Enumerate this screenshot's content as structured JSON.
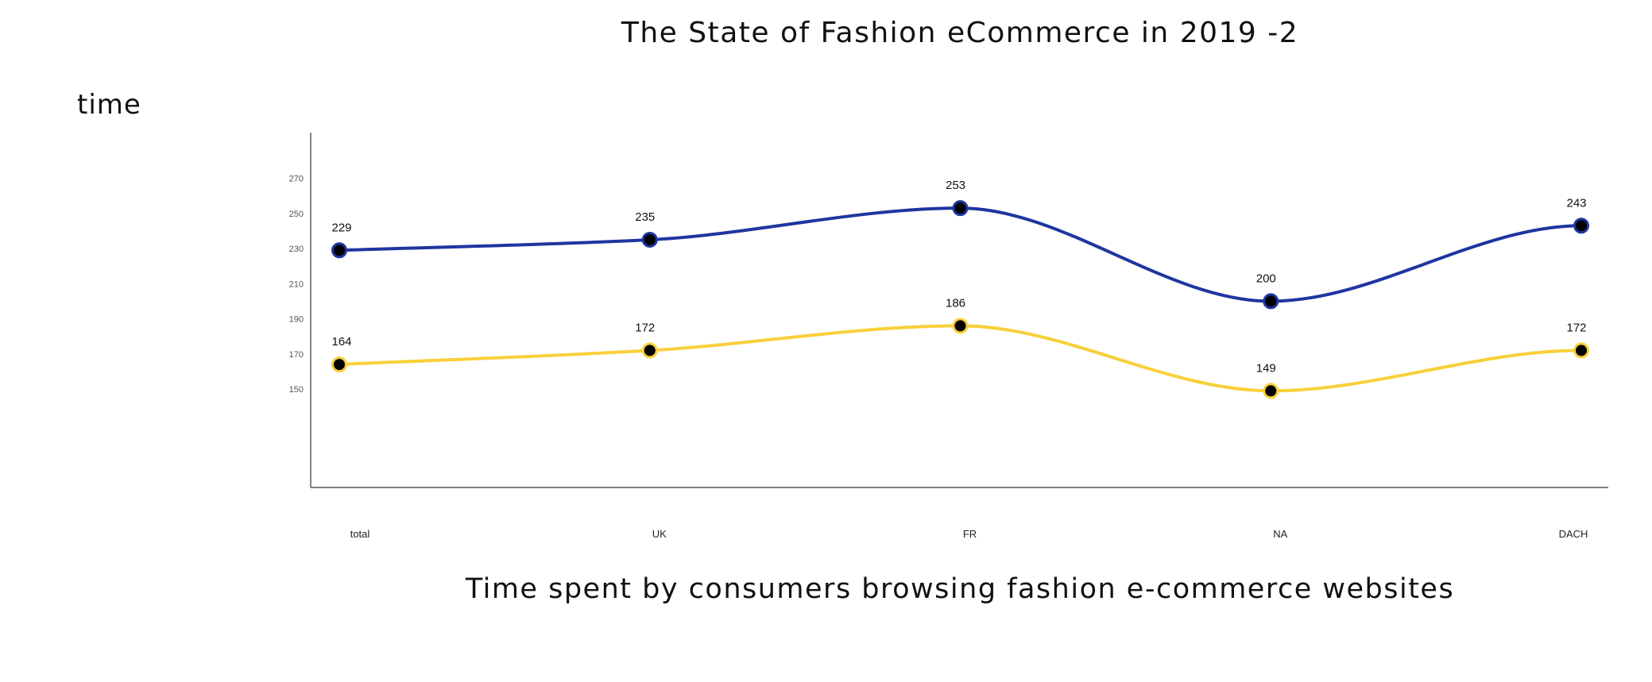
{
  "chart_data": {
    "type": "line",
    "title": "The State of Fashion eCommerce in 2019 -2",
    "ylabel": "time",
    "xlabel": "Time spent by consumers browsing fashion e-commerce websites",
    "categories": [
      "total",
      "UK",
      "FR",
      "NA",
      "DACH"
    ],
    "yticks": [
      150,
      170,
      190,
      210,
      230,
      250,
      270
    ],
    "ylim": [
      94,
      296
    ],
    "grid": false,
    "legend": "none",
    "curve": "smooth",
    "series": [
      {
        "color": "#1f35a0",
        "values": [
          229,
          235,
          253,
          200,
          243
        ],
        "labels": [
          "229",
          "235",
          "253",
          "200",
          "243"
        ]
      },
      {
        "color": "#f9cf3a",
        "values": [
          164,
          172,
          186,
          149,
          172
        ],
        "labels": [
          "164",
          "172",
          "186",
          "149",
          "172"
        ]
      }
    ],
    "marker_fill": "#000000"
  }
}
